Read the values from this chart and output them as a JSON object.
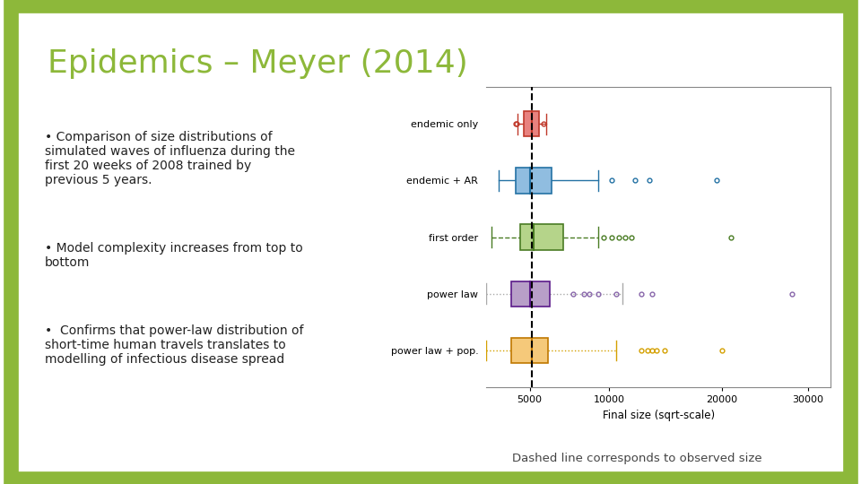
{
  "title": "Epidemics – Meyer (2014)",
  "title_color": "#8db83a",
  "background_color": "#ffffff",
  "border_color": "#8db83a",
  "border_lw": 12,
  "bullet_points": [
    "Comparison of size distributions of\nsimulated waves of influenza during the\nfirst 20 weeks of 2008 trained by\nprevious 5 years.",
    "Model complexity increases from top to\nbottom",
    " Confirms that power-law distribution of\nshort-time human travels translates to\nmodelling of infectious disease spread"
  ],
  "caption": "Dashed line corresponds to observed size",
  "xlabel": "Final size (sqrt-scale)",
  "xtick_labels": [
    "5000",
    "10000",
    "20000",
    "30000"
  ],
  "xtick_values": [
    5000,
    10000,
    20000,
    30000
  ],
  "xlim": [
    3000,
    33000
  ],
  "observed": 5100,
  "models": [
    "endemic only",
    "endemic + AR",
    "first order",
    "power law",
    "power law + pop."
  ],
  "box_facecolors": [
    "#e8827f",
    "#90bde0",
    "#b5d48a",
    "#b89fc8",
    "#f5c97a"
  ],
  "box_edgecolors": [
    "#c0392b",
    "#2472a4",
    "#4a7c24",
    "#5b1a8a",
    "#c07800"
  ],
  "whisker_colors": [
    "#c0392b",
    "#2472a4",
    "#4a7c24",
    "#aaaaaa",
    "#d4a000"
  ],
  "flier_colors": [
    "#c0392b",
    "#2472a4",
    "#4a7c24",
    "#8866aa",
    "#d4a000"
  ],
  "boxplot_data": {
    "endemic only": {
      "q1": 4700,
      "median": 5100,
      "q3": 5500,
      "whislo": 4400,
      "whishi": 5900,
      "fliers": [
        4300,
        4350,
        5750
      ],
      "whisker_style": "solid"
    },
    "endemic + AR": {
      "q1": 4300,
      "median": 5000,
      "q3": 6200,
      "whislo": 3500,
      "whishi": 9200,
      "fliers": [
        10200,
        12000,
        13200,
        19500
      ],
      "whisker_style": "solid"
    },
    "first order": {
      "q1": 4500,
      "median": 5200,
      "q3": 6900,
      "whislo": 3200,
      "whishi": 9200,
      "fliers": [
        9600,
        10200,
        10700,
        11200,
        11700,
        21000
      ],
      "whisker_style": "dashed"
    },
    "power law": {
      "q1": 4100,
      "median": 5000,
      "q3": 6100,
      "whislo": 3000,
      "whishi": 11000,
      "fliers": [
        7500,
        8200,
        8600,
        9200,
        10500,
        12500,
        13400,
        28000
      ],
      "whisker_style": "dotted"
    },
    "power law + pop.": {
      "q1": 4100,
      "median": 5100,
      "q3": 6000,
      "whislo": 3000,
      "whishi": 10500,
      "fliers": [
        12500,
        13000,
        13400,
        13800,
        14500,
        20000
      ],
      "whisker_style": "dotted"
    }
  }
}
